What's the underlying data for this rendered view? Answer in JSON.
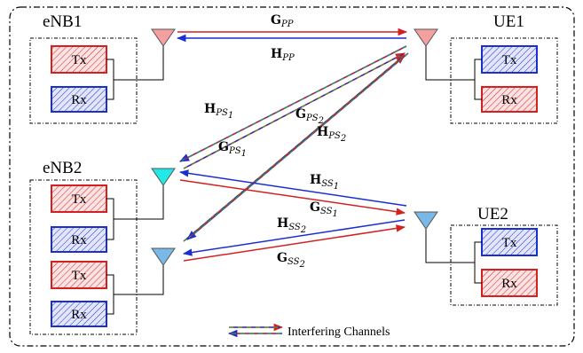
{
  "nodes": {
    "enb1": "eNB1",
    "enb2": "eNB2",
    "ue1": "UE1",
    "ue2": "UE2"
  },
  "blocks": {
    "tx": "Tx",
    "rx": "Rx"
  },
  "channels": [
    {
      "id": "gpp",
      "main": "G",
      "sub": "PP"
    },
    {
      "id": "hpp",
      "main": "H",
      "sub": "PP"
    },
    {
      "id": "hps1",
      "main": "H",
      "sub": "PS",
      "subsub": "1"
    },
    {
      "id": "gps1",
      "main": "G",
      "sub": "PS",
      "subsub": "1"
    },
    {
      "id": "gps2",
      "main": "G",
      "sub": "PS",
      "subsub": "2"
    },
    {
      "id": "hps2",
      "main": "H",
      "sub": "PS",
      "subsub": "2"
    },
    {
      "id": "hss1",
      "main": "H",
      "sub": "SS",
      "subsub": "1"
    },
    {
      "id": "gss1",
      "main": "G",
      "sub": "SS",
      "subsub": "1"
    },
    {
      "id": "hss2",
      "main": "H",
      "sub": "SS",
      "subsub": "2"
    },
    {
      "id": "gss2",
      "main": "G",
      "sub": "SS",
      "subsub": "2"
    }
  ],
  "legend": {
    "text": "Interfering Channels"
  },
  "colors": {
    "red": "#d42020",
    "blue": "#1a2fd0",
    "green": "#3a9a3a",
    "tx_fill": "#fbe0e0",
    "rx_fill": "#e0e4fb",
    "antenna_pink": "#f4a0a0",
    "antenna_cyan": "#22e8e8",
    "antenna_blue": "#7ab8e8"
  }
}
